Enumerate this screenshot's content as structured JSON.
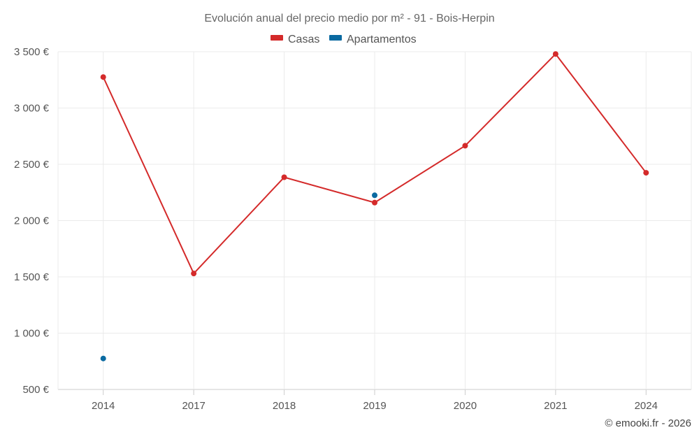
{
  "chart_data": {
    "type": "line",
    "title": "Evolución anual del precio medio por m² - 91 - Bois-Herpin",
    "categories": [
      "2014",
      "2017",
      "2018",
      "2019",
      "2020",
      "2021",
      "2024"
    ],
    "y_tick_labels": [
      "500 €",
      "1 000 €",
      "1 500 €",
      "2 000 €",
      "2 500 €",
      "3 000 €",
      "3 500 €"
    ],
    "ylim": [
      500,
      3500
    ],
    "grid": true,
    "legend_position": "top-center",
    "series": [
      {
        "name": "Casas",
        "color": "#d42a2a",
        "line": true,
        "values": [
          3275,
          1530,
          2385,
          2160,
          2665,
          3480,
          2425
        ]
      },
      {
        "name": "Apartamentos",
        "color": "#0a6aa1",
        "line": false,
        "values": [
          775,
          null,
          null,
          2225,
          null,
          null,
          null
        ]
      }
    ],
    "credit": "© emooki.fr - 2026"
  }
}
